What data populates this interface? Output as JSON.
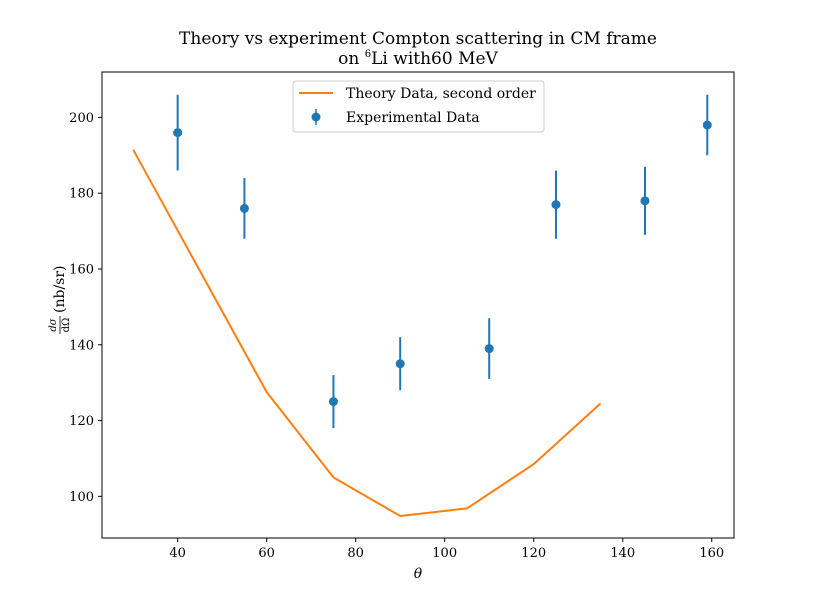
{
  "chart_data": {
    "type": "line",
    "title_line1": "Theory vs experiment Compton scattering in CM frame",
    "title_line2_prefix": "on ",
    "title_line2_sup": "6",
    "title_line2_suffix": "Li with60 MeV",
    "xlabel": "θ",
    "ylabel_frac_num": "dσ",
    "ylabel_frac_den": "dΩ",
    "ylabel_unit": " (nb/sr)",
    "xlim": [
      23,
      165
    ],
    "ylim": [
      89,
      212
    ],
    "xticks": [
      40,
      60,
      80,
      100,
      120,
      140,
      160
    ],
    "yticks": [
      100,
      120,
      140,
      160,
      180,
      200
    ],
    "grid": false,
    "legend_position": "top-center",
    "theory": {
      "name": "Theory Data, second order",
      "color": "#ff7f0e",
      "x": [
        30,
        45,
        60,
        75,
        90,
        105,
        120,
        135
      ],
      "y": [
        191.5,
        159.5,
        127.5,
        105,
        94.8,
        96.8,
        108.5,
        124.5
      ]
    },
    "experiment": {
      "name": "Experimental Data",
      "color": "#1f77b4",
      "x": [
        40,
        55,
        75,
        90,
        110,
        125,
        145,
        159
      ],
      "y": [
        196,
        176,
        125,
        135,
        139,
        177,
        178,
        198
      ],
      "yerr": [
        10,
        8,
        7,
        7,
        8,
        9,
        9,
        8
      ]
    }
  }
}
